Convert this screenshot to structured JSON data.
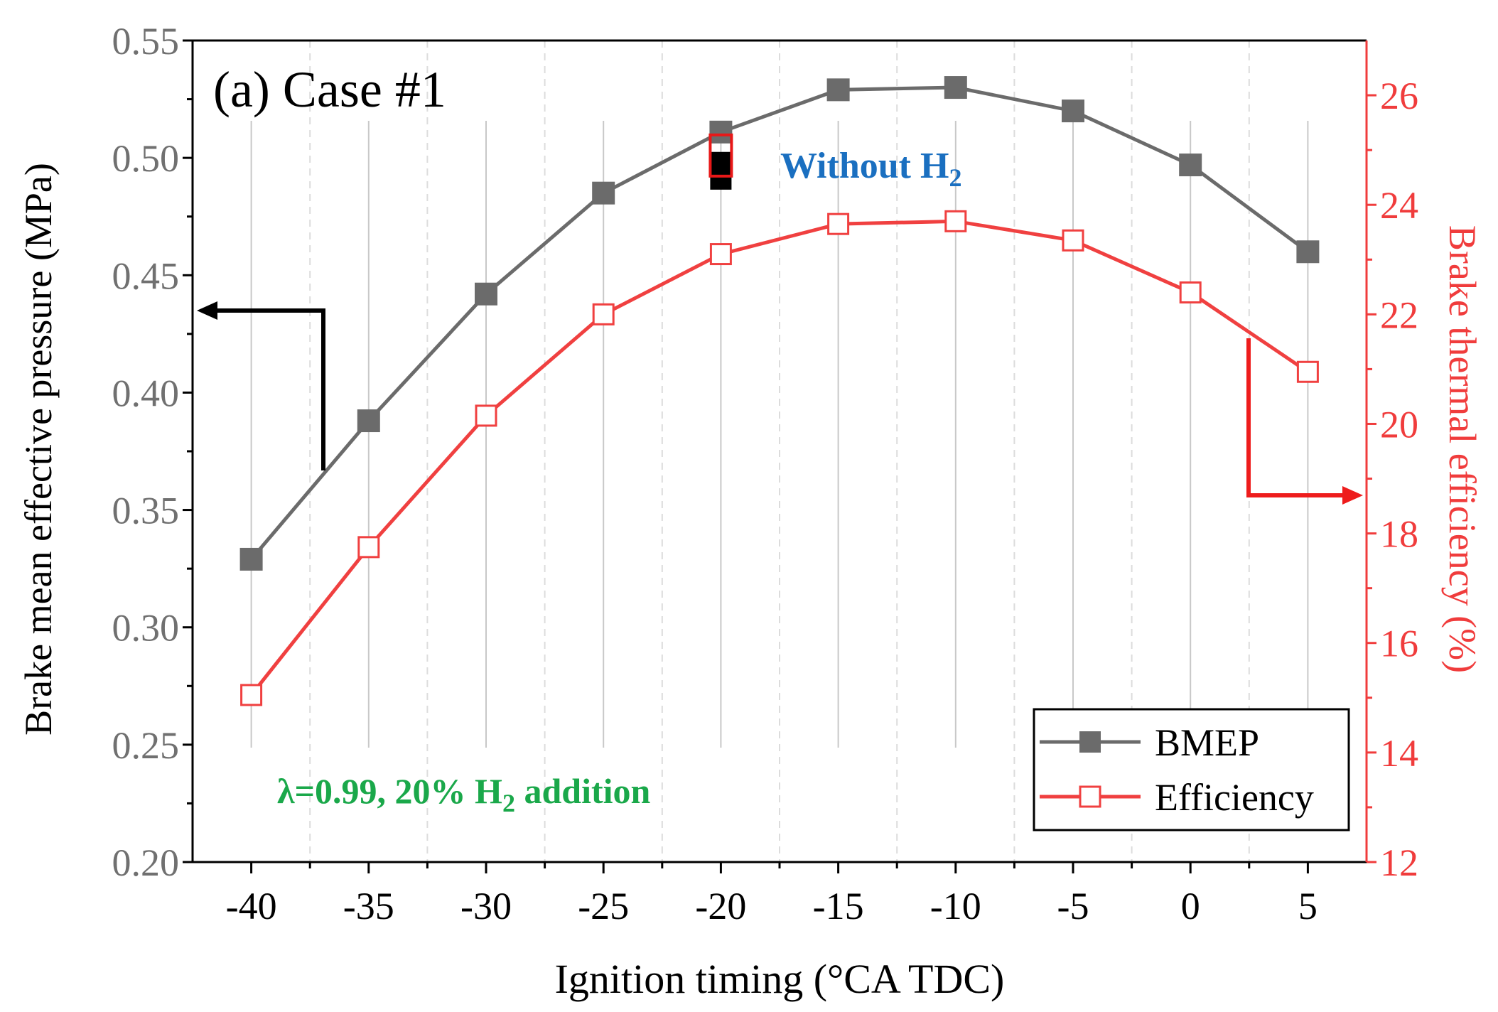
{
  "chart_data": {
    "type": "line",
    "panel_label": "(a) Case #1",
    "xlabel": "Ignition timing (°CA TDC)",
    "ylabel_left": "Brake mean effective pressure (MPa)",
    "ylabel_right": "Brake thermal efficiency (%)",
    "xlim": [
      -42.5,
      7.5
    ],
    "ylim_left": [
      0.2,
      0.55
    ],
    "ylim_right": [
      12,
      27
    ],
    "x_ticks": [
      -40,
      -35,
      -30,
      -25,
      -20,
      -15,
      -10,
      -5,
      0,
      5
    ],
    "x_tick_labels": [
      "-40",
      "-35",
      "-30",
      "-25",
      "-20",
      "-15",
      "-10",
      "-5",
      "0",
      "5"
    ],
    "y_left_ticks": [
      0.2,
      0.25,
      0.3,
      0.35,
      0.4,
      0.45,
      0.5,
      0.55
    ],
    "y_left_tick_labels": [
      "0.20",
      "0.25",
      "0.30",
      "0.35",
      "0.40",
      "0.45",
      "0.50",
      "0.55"
    ],
    "y_right_ticks": [
      12,
      14,
      16,
      18,
      20,
      22,
      24,
      26
    ],
    "y_right_tick_labels": [
      "12",
      "14",
      "16",
      "18",
      "20",
      "22",
      "24",
      "26"
    ],
    "x": [
      -40,
      -35,
      -30,
      -25,
      -20,
      -15,
      -10,
      -5,
      0,
      5
    ],
    "series": [
      {
        "name": "BMEP",
        "axis": "left",
        "marker": "filled-square",
        "values": [
          0.329,
          0.388,
          0.442,
          0.485,
          0.511,
          0.529,
          0.53,
          0.52,
          0.497,
          0.46
        ]
      },
      {
        "name": "Efficiency",
        "axis": "right",
        "marker": "open-square",
        "values": [
          15.05,
          17.75,
          20.15,
          22.0,
          23.1,
          23.65,
          23.7,
          23.35,
          22.4,
          20.95
        ]
      }
    ],
    "reference_points": {
      "label": "Without H",
      "label_subscript": "2",
      "x": -20,
      "bmep": 0.498,
      "bmep_lower": 0.491,
      "efficiency": 24.9
    },
    "condition": {
      "prefix": "λ=0.99, 20% H",
      "subscript": "2",
      "suffix": " addition"
    },
    "legend_location": "lower-right",
    "grid": "vertical",
    "colors": {
      "bmep": "#6b6b6b",
      "efficiency": "#f04040",
      "right_axis": "#f03c3c",
      "left_ticks": "#707070",
      "reference_label": "#1a6fc0",
      "condition_label": "#1aa84a",
      "grid_major": "#c8c8c8",
      "grid_minor": "#dcdcdc"
    }
  }
}
